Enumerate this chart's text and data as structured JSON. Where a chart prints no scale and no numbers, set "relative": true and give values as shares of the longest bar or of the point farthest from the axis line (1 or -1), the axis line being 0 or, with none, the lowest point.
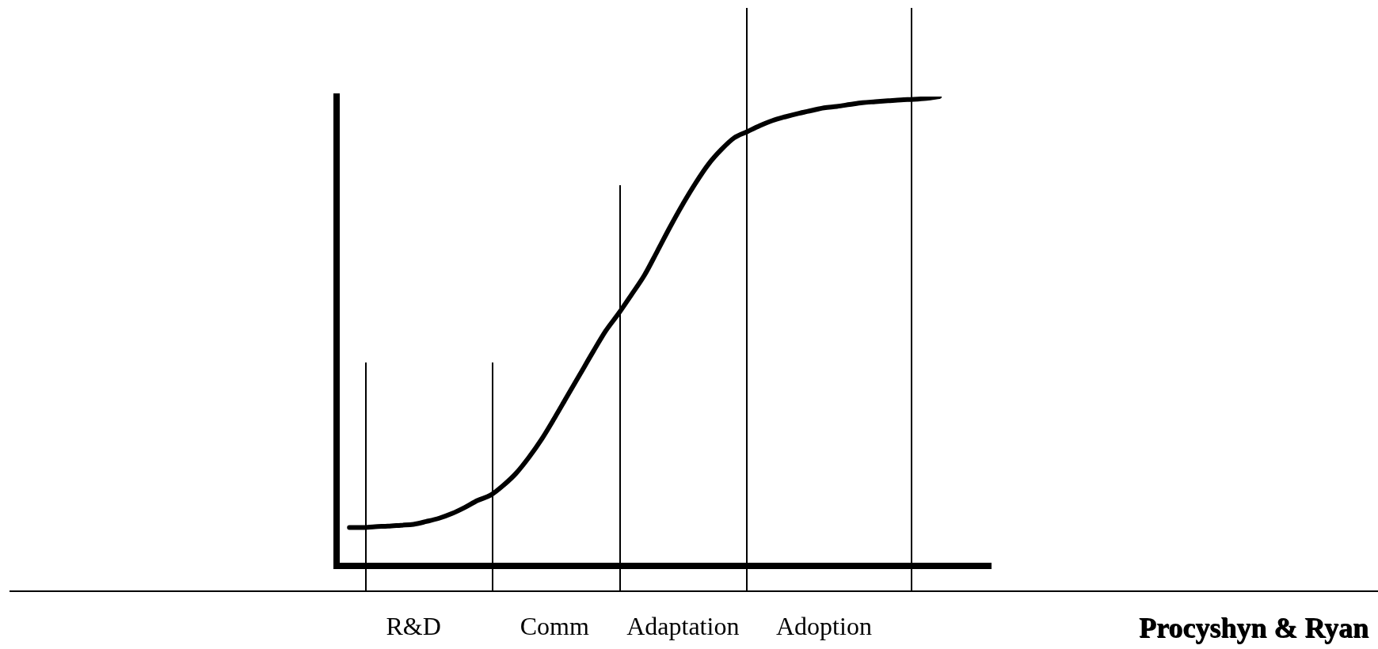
{
  "chart_data": {
    "type": "line",
    "relative": true,
    "color": "#000000",
    "categories": [
      null,
      null,
      null,
      null,
      null,
      null,
      "R&D",
      null,
      null,
      null,
      null,
      null,
      null,
      null,
      null,
      null,
      null,
      "Comm",
      null,
      null,
      null,
      null,
      null,
      null,
      null,
      null,
      null,
      "Adaptation",
      null,
      null,
      null,
      null,
      null,
      null,
      null,
      null,
      null,
      null,
      "Adoption",
      null,
      null,
      null,
      null,
      null,
      null,
      null,
      null,
      null,
      null,
      null,
      null,
      null
    ],
    "values": [
      null,
      0.081,
      0.081,
      0.083,
      0.084,
      0.086,
      0.088,
      0.094,
      0.101,
      0.111,
      0.124,
      0.139,
      0.15,
      0.171,
      0.197,
      0.231,
      0.27,
      0.315,
      0.362,
      0.409,
      0.456,
      0.501,
      0.538,
      0.578,
      0.619,
      0.67,
      0.722,
      0.771,
      0.816,
      0.856,
      0.887,
      0.912,
      0.925,
      0.938,
      0.949,
      0.957,
      0.964,
      0.97,
      0.976,
      0.979,
      0.983,
      0.987,
      0.989,
      0.991,
      0.993,
      0.994,
      0.996,
      1.0,
      null,
      null,
      null,
      null
    ],
    "annotations": [
      "Procyshyn & Ryan"
    ]
  }
}
